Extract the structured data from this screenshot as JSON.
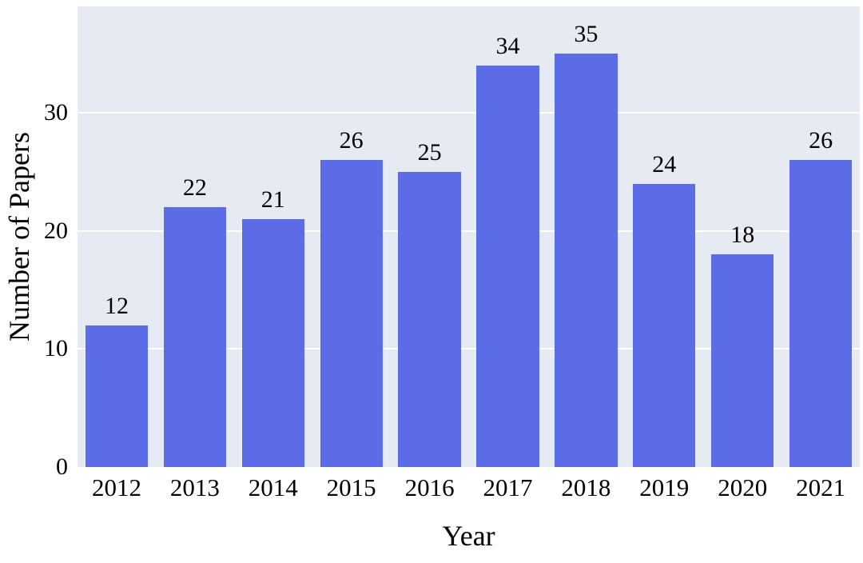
{
  "chart_data": {
    "type": "bar",
    "title": "",
    "xlabel": "Year",
    "ylabel": "Number of Papers",
    "categories": [
      "2012",
      "2013",
      "2014",
      "2015",
      "2016",
      "2017",
      "2018",
      "2019",
      "2020",
      "2021"
    ],
    "values": [
      12,
      22,
      21,
      26,
      25,
      34,
      35,
      24,
      18,
      26
    ],
    "ylim": [
      0,
      39
    ],
    "yticks": [
      0,
      10,
      20,
      30
    ],
    "grid": true,
    "legend": "none",
    "bar_labels_shown": true,
    "colors": {
      "bar": "#5c6ce6",
      "plot_background": "#e6eaf3",
      "gridline": "#ffffff",
      "text": "#000000",
      "figure_background": "#ffffff"
    }
  }
}
